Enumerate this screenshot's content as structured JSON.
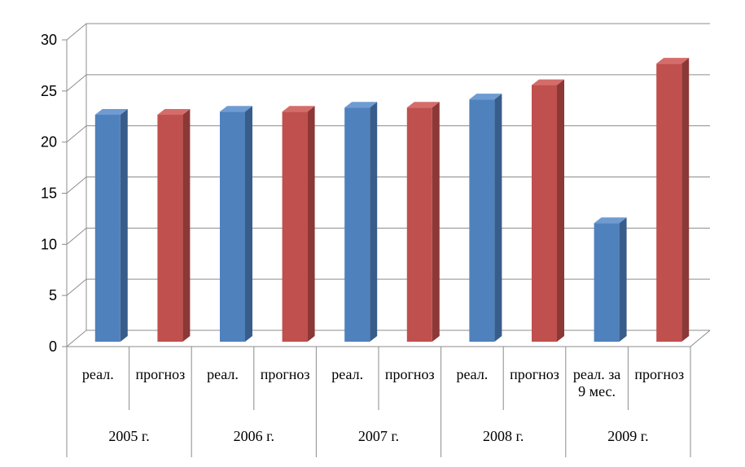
{
  "chart_data": {
    "type": "bar",
    "title": "",
    "xlabel": "",
    "ylabel": "",
    "ylim": [
      0,
      30
    ],
    "yticks": [
      "0",
      "5",
      "10",
      "15",
      "20",
      "25",
      "30"
    ],
    "grid": true,
    "legend": "none",
    "groups": [
      {
        "label": "2005 г.",
        "bars": [
          {
            "label": "реал.",
            "value": 22.2,
            "kind": "real"
          },
          {
            "label": "прогноз",
            "value": 22.2,
            "kind": "forecast"
          }
        ]
      },
      {
        "label": "2006 г.",
        "bars": [
          {
            "label": "реал.",
            "value": 22.5,
            "kind": "real"
          },
          {
            "label": "прогноз",
            "value": 22.5,
            "kind": "forecast"
          }
        ]
      },
      {
        "label": "2007 г.",
        "bars": [
          {
            "label": "реал.",
            "value": 22.9,
            "kind": "real"
          },
          {
            "label": "прогноз",
            "value": 22.9,
            "kind": "forecast"
          }
        ]
      },
      {
        "label": "2008 г.",
        "bars": [
          {
            "label": "реал.",
            "value": 23.7,
            "kind": "real"
          },
          {
            "label": "прогноз",
            "value": 25.1,
            "kind": "forecast"
          }
        ]
      },
      {
        "label": "2009 г.",
        "bars": [
          {
            "label": "реал. за 9 мес.",
            "value": 11.6,
            "kind": "real"
          },
          {
            "label": "прогноз",
            "value": 27.2,
            "kind": "forecast"
          }
        ]
      }
    ],
    "colors": {
      "real": {
        "front": "#4f81bd",
        "side": "#385d8a",
        "top": "#6f9bd2"
      },
      "forecast": {
        "front": "#c0504d",
        "side": "#8c3836",
        "top": "#d46d6a"
      },
      "grid": "#8c8c8c"
    }
  }
}
